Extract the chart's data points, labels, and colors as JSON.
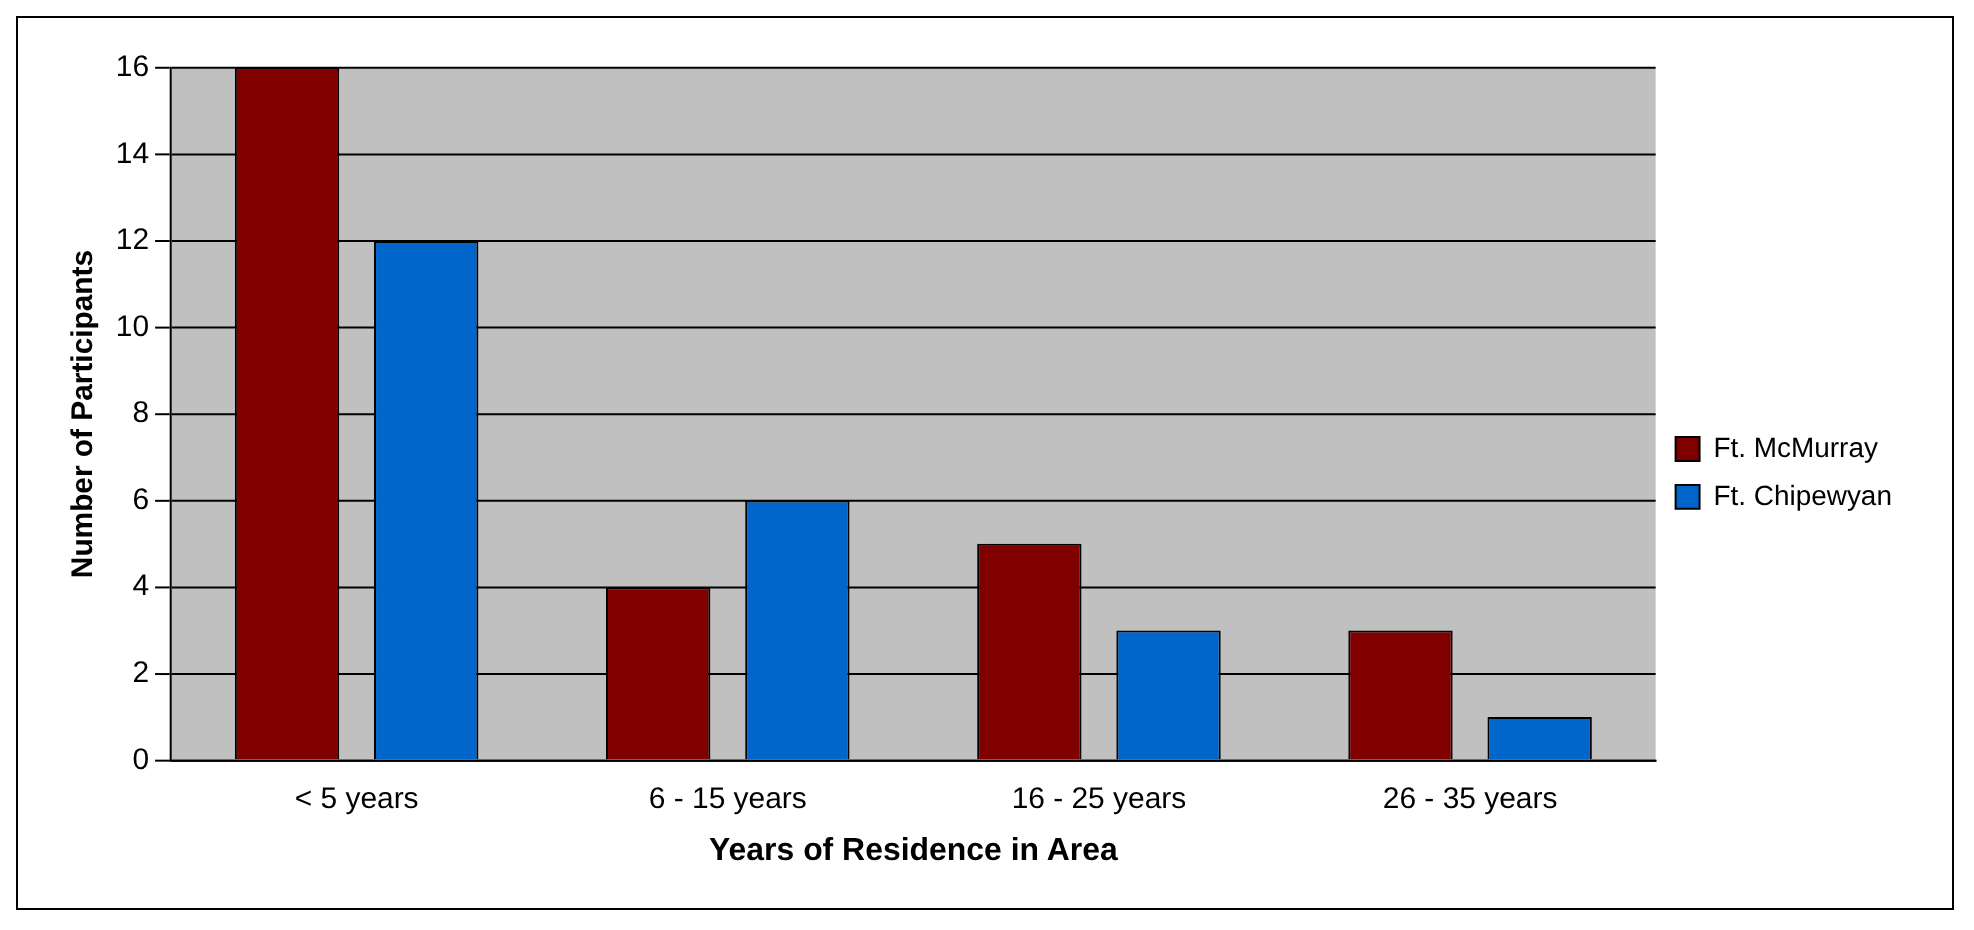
{
  "chart_data": {
    "type": "bar",
    "xlabel": "Years of Residence in Area",
    "ylabel": "Number of Participants",
    "categories": [
      "< 5 years",
      "6 - 15 years",
      "16 - 25 years",
      "26 - 35 years"
    ],
    "series": [
      {
        "name": "Ft. McMurray",
        "color": "#800000",
        "values": [
          16,
          4,
          5,
          3
        ]
      },
      {
        "name": "Ft. Chipewyan",
        "color": "#0066cc",
        "values": [
          12,
          6,
          3,
          1
        ]
      }
    ],
    "ylim": [
      0,
      16
    ],
    "yticks": [
      0,
      2,
      4,
      6,
      8,
      10,
      12,
      14,
      16
    ],
    "grid": "y",
    "legend": "right"
  }
}
